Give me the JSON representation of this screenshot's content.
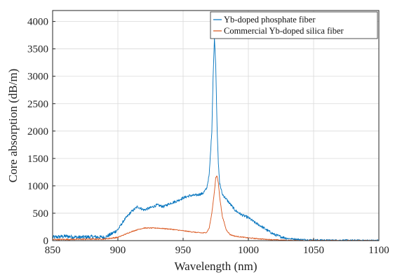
{
  "chart_data": {
    "type": "line",
    "xlabel": "Wavelength (nm)",
    "ylabel": "Core absorption (dB/m)",
    "xlim": [
      850,
      1100
    ],
    "ylim": [
      0,
      4200
    ],
    "xticks": [
      850,
      900,
      950,
      1000,
      1050,
      1100
    ],
    "yticks": [
      0,
      500,
      1000,
      1500,
      2000,
      2500,
      3000,
      3500,
      4000
    ],
    "grid": true,
    "legend_position": "top-right",
    "series": [
      {
        "name": "Yb-doped phosphate fiber",
        "color": "#0072BD",
        "x": [
          850,
          860,
          870,
          880,
          890,
          895,
          900,
          905,
          910,
          915,
          920,
          925,
          930,
          935,
          940,
          945,
          950,
          955,
          960,
          965,
          968,
          970,
          972,
          973,
          974,
          975,
          976,
          977,
          978,
          980,
          985,
          990,
          995,
          1000,
          1005,
          1010,
          1015,
          1020,
          1025,
          1030,
          1040,
          1050,
          1060,
          1070,
          1080,
          1090,
          1100
        ],
        "y": [
          60,
          80,
          60,
          70,
          60,
          120,
          200,
          380,
          520,
          620,
          560,
          600,
          650,
          620,
          680,
          720,
          780,
          820,
          830,
          860,
          950,
          1200,
          2000,
          3000,
          3700,
          3200,
          2100,
          1400,
          1050,
          850,
          700,
          550,
          470,
          420,
          330,
          260,
          180,
          110,
          70,
          40,
          20,
          12,
          8,
          6,
          5,
          4,
          3
        ]
      },
      {
        "name": "Commercial Yb-doped silica fiber",
        "color": "#D95319",
        "x": [
          850,
          870,
          890,
          900,
          905,
          910,
          915,
          920,
          930,
          940,
          950,
          960,
          965,
          968,
          970,
          972,
          974,
          975,
          976,
          977,
          978,
          980,
          983,
          986,
          990,
          1000,
          1010,
          1020,
          1030,
          1050,
          1070,
          1100
        ],
        "y": [
          20,
          25,
          30,
          60,
          110,
          160,
          200,
          230,
          230,
          210,
          180,
          150,
          140,
          150,
          230,
          500,
          900,
          1150,
          1180,
          1050,
          800,
          450,
          200,
          110,
          80,
          50,
          30,
          15,
          5,
          2,
          1,
          0
        ]
      }
    ]
  }
}
